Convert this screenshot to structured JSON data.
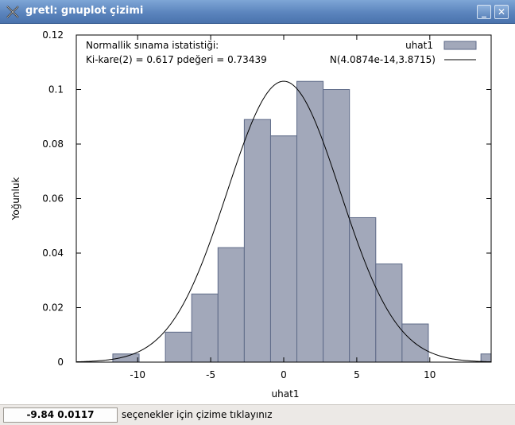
{
  "window": {
    "title": "gretl: gnuplot çizimi",
    "icon": "gretl-app-icon",
    "minimize_icon": "minimize-icon",
    "close_icon": "close-icon"
  },
  "status": {
    "coords": "-9.84 0.0117",
    "hint": "seçenekler için çizime tıklayınız"
  },
  "chart_data": {
    "type": "bar",
    "title": "",
    "xlabel": "uhat1",
    "ylabel": "Yoğunluk",
    "xlim": [
      -14.2,
      14.2
    ],
    "ylim": [
      0,
      0.12
    ],
    "x_ticks": [
      -10,
      -5,
      0,
      5,
      10
    ],
    "y_ticks": [
      0,
      0.02,
      0.04,
      0.06,
      0.08,
      0.1,
      0.12
    ],
    "x_tick_labels": [
      "-10",
      "-5",
      "0",
      "5",
      "10"
    ],
    "y_tick_labels": [
      "0",
      "0.02",
      "0.04",
      "0.06",
      "0.08",
      "0.1",
      "0.12"
    ],
    "bin_width": 1.8,
    "bin_centers": [
      -12.6,
      -10.8,
      -9.0,
      -7.2,
      -5.4,
      -3.6,
      -1.8,
      0.0,
      1.8,
      3.6,
      5.4,
      7.2,
      9.0,
      10.8,
      12.6,
      14.4
    ],
    "bin_edges": [
      -13.5,
      -11.7,
      -9.9,
      -8.1,
      -6.3,
      -4.5,
      -2.7,
      -0.9,
      0.9,
      2.7,
      4.5,
      6.3,
      8.1,
      9.9,
      11.7,
      13.5,
      15.3
    ],
    "series": [
      {
        "name": "uhat1",
        "kind": "histogram",
        "color": "#a2a8ba",
        "edge_color": "#5e6a88",
        "values": [
          0.0,
          0.003,
          0.0,
          0.011,
          0.025,
          0.042,
          0.089,
          0.083,
          0.103,
          0.1,
          0.053,
          0.036,
          0.014,
          0.0,
          0.0,
          0.003
        ]
      },
      {
        "name": "N(4.0874e-14,3.8715)",
        "kind": "normal_density",
        "mean": 4.0874e-14,
        "sd": 3.8715,
        "color": "#000000"
      }
    ],
    "annotations": [
      "Normallik sınama istatistiği:",
      "Ki-kare(2) = 0.617 pdeğeri = 0.73439"
    ],
    "legend_position": "top-right",
    "grid": false
  }
}
